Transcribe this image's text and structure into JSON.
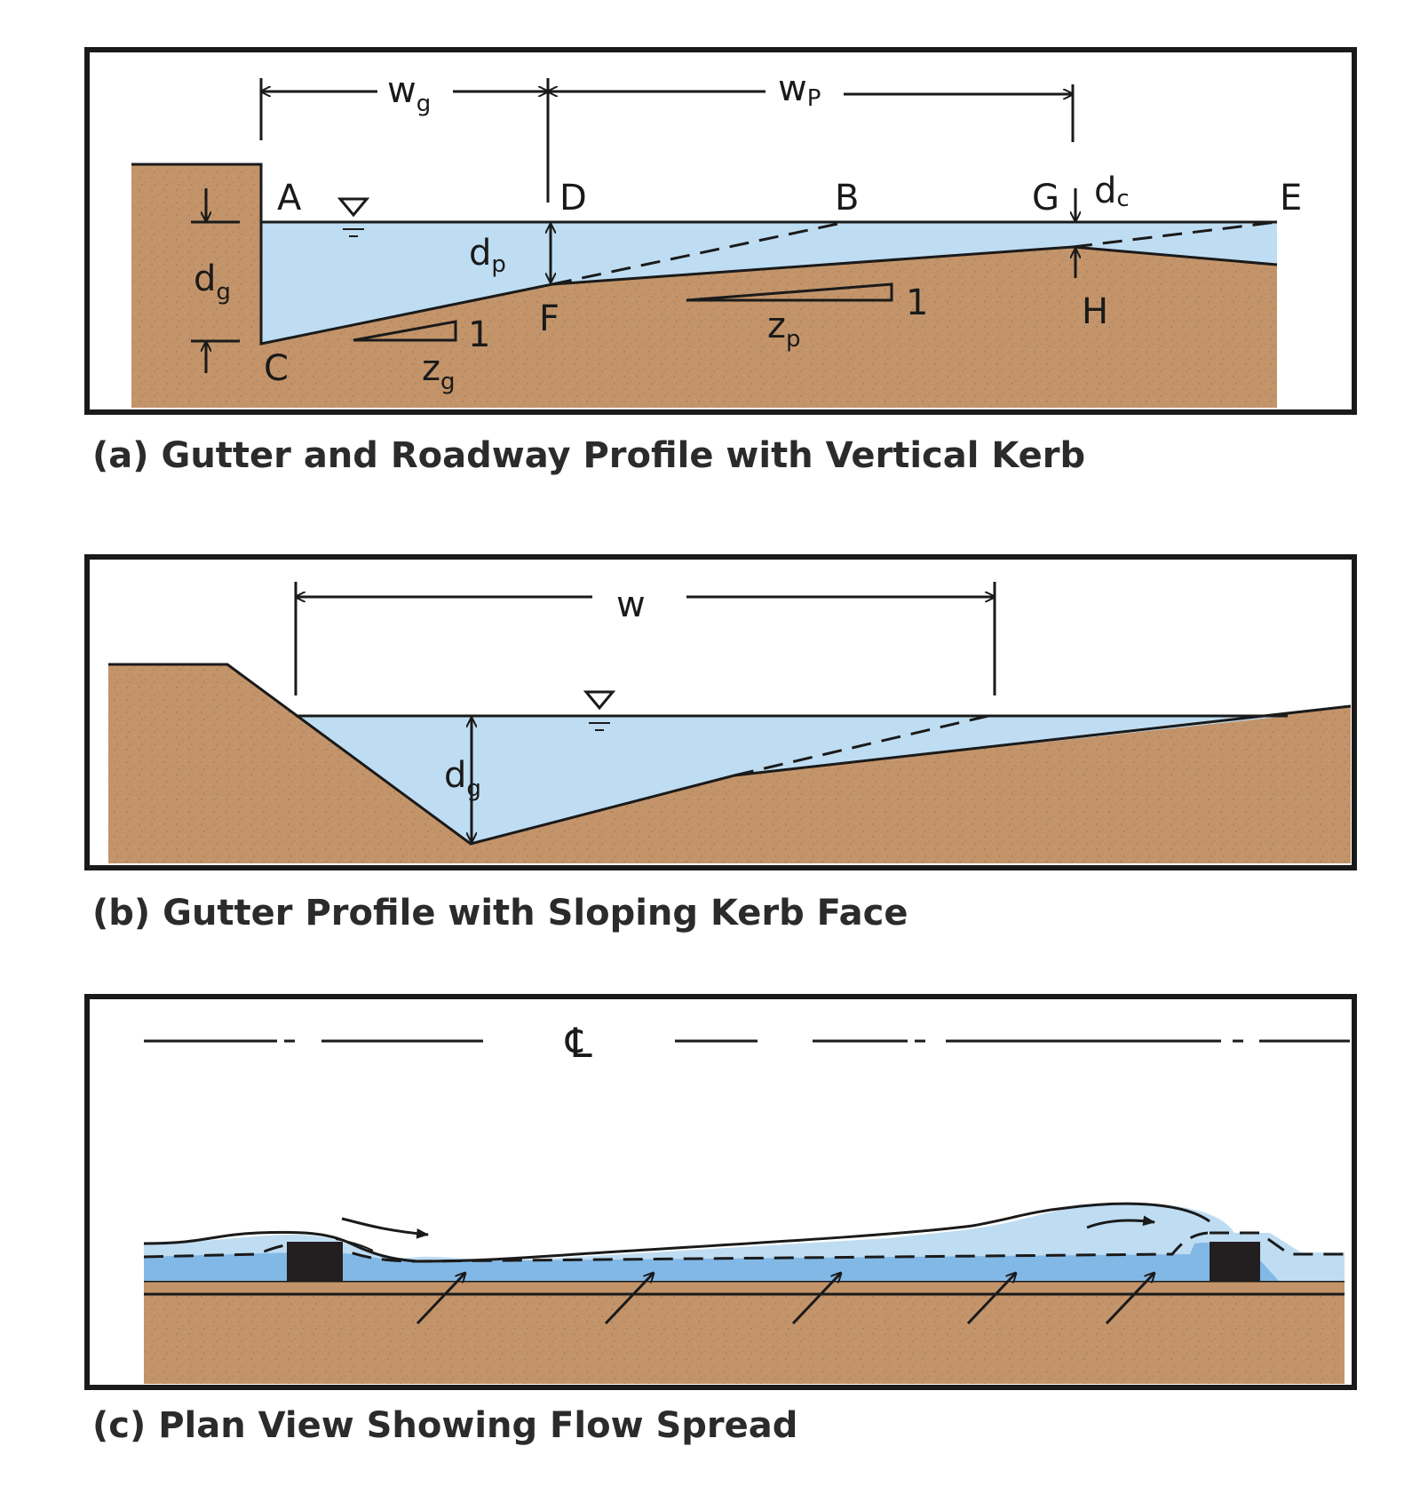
{
  "panel_a": {
    "caption": "(a) Gutter and Roadway Profile with Vertical Kerb",
    "points": {
      "A": "A",
      "B": "B",
      "C": "C",
      "D": "D",
      "E": "E",
      "F": "F",
      "G": "G",
      "H": "H"
    },
    "dims": {
      "wg": {
        "main": "w",
        "sub": "g"
      },
      "wp": {
        "main": "w",
        "sub": "P"
      },
      "dg": {
        "main": "d",
        "sub": "g"
      },
      "dp": {
        "main": "d",
        "sub": "p"
      },
      "dc": {
        "main": "d",
        "sub": "c"
      }
    },
    "slopes": {
      "zg": {
        "main": "z",
        "sub": "g",
        "rise": "1"
      },
      "zp": {
        "main": "z",
        "sub": "p",
        "rise": "1"
      }
    }
  },
  "panel_b": {
    "caption": "(b) Gutter Profile with Sloping Kerb Face",
    "dims": {
      "w": "w",
      "dg": {
        "main": "d",
        "sub": "g"
      }
    }
  },
  "panel_c": {
    "caption": "(c) Plan View Showing Flow Spread",
    "centerline_symbol": "℄"
  },
  "colors": {
    "soil": "#c3946a",
    "soil_speck": "#a67a52",
    "water": "#bfddf2",
    "water_deep": "#82b8e6",
    "inlet": "#231f20",
    "line": "#1a1a1a"
  }
}
